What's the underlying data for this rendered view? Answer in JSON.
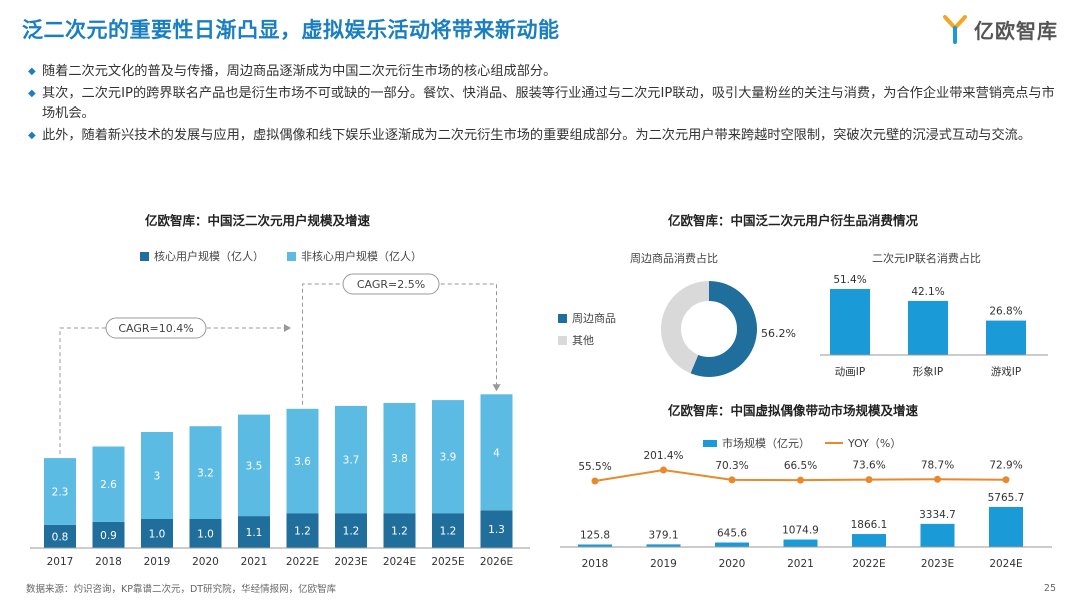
{
  "header": {
    "title": "泛二次元的重要性日渐凸显，虚拟娱乐活动将带来新动能",
    "logo_text": "亿欧智库",
    "brand_color": "#1a7fc0"
  },
  "bullets": [
    "随着二次元文化的普及与传播，周边商品逐渐成为中国二次元衍生市场的核心组成部分。",
    "其次，二次元IP的跨界联名产品也是衍生市场不可或缺的一部分。餐饮、快消品、服装等行业通过与二次元IP联动，吸引大量粉丝的关注与消费，为合作企业带来营销亮点与市场机会。",
    "此外，随着新兴技术的发展与应用，虚拟偶像和线下娱乐业逐渐成为二次元衍生市场的重要组成部分。为二次元用户带来跨越时空限制，突破次元壁的沉浸式互动与交流。"
  ],
  "footer": {
    "source": "数据来源：灼识咨询，KP靠谱二次元，DT研究院，华经情报网，亿欧智库",
    "page": "25"
  },
  "chart_data": [
    {
      "type": "bar",
      "stacked": true,
      "title": "亿欧智库：中国泛二次元用户规模及增速",
      "categories": [
        "2017",
        "2018",
        "2019",
        "2020",
        "2021",
        "2022E",
        "2023E",
        "2024E",
        "2025E",
        "2026E"
      ],
      "series": [
        {
          "name": "核心用户规模（亿人）",
          "color": "#1f6e9c",
          "values": [
            0.8,
            0.9,
            1.0,
            1.0,
            1.1,
            1.2,
            1.2,
            1.2,
            1.2,
            1.3
          ],
          "labels": [
            "0.8",
            "0.9",
            "1.0",
            "1.0",
            "1.1",
            "1.2",
            "1.2",
            "1.2",
            "1.2",
            "1.3"
          ]
        },
        {
          "name": "非核心用户规模（亿人）",
          "color": "#5bbbe3",
          "values": [
            2.3,
            2.6,
            3,
            3.2,
            3.5,
            3.6,
            3.7,
            3.8,
            3.9,
            4
          ],
          "labels": [
            "2.3",
            "2.6",
            "3",
            "3.2",
            "3.5",
            "3.6",
            "3.7",
            "3.8",
            "3.9",
            "4"
          ]
        }
      ],
      "annotations": [
        "CAGR=10.4%",
        "CAGR=2.5%"
      ],
      "legend": "top-left",
      "grid": false
    },
    {
      "type": "pie",
      "title": "亿欧智库：中国泛二次元用户衍生品消费情况",
      "subtitle": "周边商品消费占比",
      "slices": [
        {
          "name": "周边商品",
          "value": 56.2,
          "color": "#1f6e9c"
        },
        {
          "name": "其他",
          "value": 43.8,
          "color": "#d9d9d9"
        }
      ],
      "labels": [
        "56.2%"
      ],
      "legend": "left"
    },
    {
      "type": "bar",
      "subtitle": "二次元IP联名消费占比",
      "categories": [
        "动画IP",
        "形象IP",
        "游戏IP"
      ],
      "values": [
        51.4,
        42.1,
        26.8
      ],
      "labels": [
        "51.4%",
        "42.1%",
        "26.8%"
      ],
      "color": "#1a9ad6"
    },
    {
      "type": "bar",
      "title": "亿欧智库：中国虚拟偶像带动市场规模及增速",
      "categories": [
        "2018",
        "2019",
        "2020",
        "2021",
        "2022E",
        "2023E",
        "2024E"
      ],
      "series": [
        {
          "name": "市场规模（亿元）",
          "color": "#1a9ad6",
          "values": [
            125.8,
            379.1,
            645.6,
            1074.9,
            1866.1,
            3334.7,
            5765.7
          ],
          "labels": [
            "125.8",
            "379.1",
            "645.6",
            "1074.9",
            "1866.1",
            "3334.7",
            "5765.7"
          ]
        },
        {
          "name": "YOY（%）",
          "type": "line",
          "color": "#e8892b",
          "values": [
            55.5,
            201.4,
            70.3,
            66.5,
            73.6,
            78.7,
            72.9
          ],
          "labels": [
            "55.5%",
            "201.4%",
            "70.3%",
            "66.5%",
            "73.6%",
            "78.7%",
            "72.9%"
          ]
        }
      ],
      "legend": "top"
    }
  ]
}
